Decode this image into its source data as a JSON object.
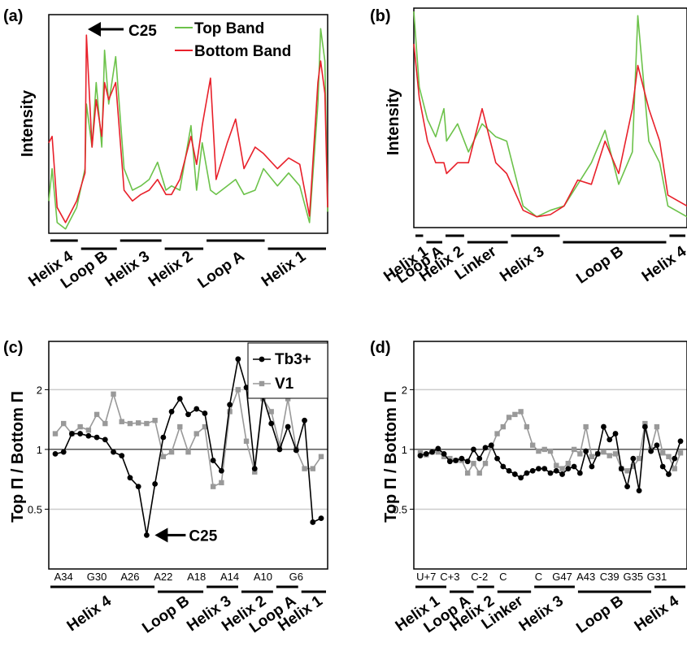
{
  "panels": {
    "a": {
      "tag": "(a)",
      "ylabel": "Intensity",
      "arrow_label": "C25"
    },
    "b": {
      "tag": "(b)",
      "ylabel": "Intensity"
    },
    "c": {
      "tag": "(c)",
      "ylabel": "Top Π / Bottom Π",
      "arrow_label": "C25"
    },
    "d": {
      "tag": "(d)",
      "ylabel": "Top Π / Bottom Π"
    }
  },
  "colors": {
    "top_band": "#6cc24a",
    "bottom_band": "#e8202a",
    "tb3": "#000000",
    "v1": "#999999",
    "gridline": "#cccccc"
  },
  "chart_data": [
    {
      "panel": "a",
      "type": "line",
      "ylabel": "Intensity",
      "y_ticks": "none",
      "legend": {
        "position": "top-right",
        "entries": [
          "Top Band",
          "Bottom Band"
        ]
      },
      "annotations": [
        {
          "text": "C25",
          "points_to": "tallest red peak in Loop B"
        }
      ],
      "regions": [
        {
          "label": "Helix 4",
          "from": 0.0,
          "to": 0.11
        },
        {
          "label": "Loop B",
          "from": 0.11,
          "to": 0.25
        },
        {
          "label": "Helix 3",
          "from": 0.25,
          "to": 0.41
        },
        {
          "label": "Helix 2",
          "from": 0.41,
          "to": 0.56
        },
        {
          "label": "Loop A",
          "from": 0.56,
          "to": 0.78
        },
        {
          "label": "Helix 1",
          "from": 0.78,
          "to": 1.0
        }
      ],
      "series": [
        {
          "name": "Top Band",
          "points": [
            [
              0.0,
              0.15
            ],
            [
              0.012,
              0.3
            ],
            [
              0.03,
              0.05
            ],
            [
              0.06,
              0.02
            ],
            [
              0.1,
              0.12
            ],
            [
              0.13,
              0.3
            ],
            [
              0.135,
              0.6
            ],
            [
              0.155,
              0.4
            ],
            [
              0.17,
              0.7
            ],
            [
              0.19,
              0.4
            ],
            [
              0.2,
              0.85
            ],
            [
              0.215,
              0.6
            ],
            [
              0.24,
              0.82
            ],
            [
              0.27,
              0.3
            ],
            [
              0.3,
              0.2
            ],
            [
              0.33,
              0.22
            ],
            [
              0.36,
              0.25
            ],
            [
              0.39,
              0.33
            ],
            [
              0.42,
              0.2
            ],
            [
              0.44,
              0.22
            ],
            [
              0.47,
              0.2
            ],
            [
              0.51,
              0.5
            ],
            [
              0.53,
              0.2
            ],
            [
              0.55,
              0.42
            ],
            [
              0.58,
              0.2
            ],
            [
              0.6,
              0.18
            ],
            [
              0.64,
              0.22
            ],
            [
              0.67,
              0.25
            ],
            [
              0.7,
              0.18
            ],
            [
              0.74,
              0.2
            ],
            [
              0.77,
              0.3
            ],
            [
              0.82,
              0.22
            ],
            [
              0.86,
              0.28
            ],
            [
              0.9,
              0.22
            ],
            [
              0.935,
              0.05
            ],
            [
              0.965,
              0.6
            ],
            [
              0.975,
              0.95
            ],
            [
              0.99,
              0.8
            ],
            [
              1.0,
              0.1
            ]
          ]
        },
        {
          "name": "Bottom Band",
          "points": [
            [
              0.0,
              0.42
            ],
            [
              0.012,
              0.45
            ],
            [
              0.03,
              0.12
            ],
            [
              0.06,
              0.05
            ],
            [
              0.1,
              0.15
            ],
            [
              0.13,
              0.28
            ],
            [
              0.135,
              0.92
            ],
            [
              0.155,
              0.4
            ],
            [
              0.17,
              0.62
            ],
            [
              0.19,
              0.45
            ],
            [
              0.2,
              0.7
            ],
            [
              0.215,
              0.62
            ],
            [
              0.24,
              0.7
            ],
            [
              0.27,
              0.2
            ],
            [
              0.3,
              0.15
            ],
            [
              0.33,
              0.18
            ],
            [
              0.36,
              0.2
            ],
            [
              0.39,
              0.25
            ],
            [
              0.42,
              0.18
            ],
            [
              0.44,
              0.18
            ],
            [
              0.47,
              0.25
            ],
            [
              0.51,
              0.45
            ],
            [
              0.53,
              0.32
            ],
            [
              0.55,
              0.5
            ],
            [
              0.58,
              0.72
            ],
            [
              0.6,
              0.25
            ],
            [
              0.64,
              0.42
            ],
            [
              0.67,
              0.53
            ],
            [
              0.7,
              0.3
            ],
            [
              0.74,
              0.4
            ],
            [
              0.77,
              0.37
            ],
            [
              0.82,
              0.3
            ],
            [
              0.86,
              0.35
            ],
            [
              0.9,
              0.32
            ],
            [
              0.935,
              0.08
            ],
            [
              0.965,
              0.7
            ],
            [
              0.975,
              0.8
            ],
            [
              0.99,
              0.65
            ],
            [
              1.0,
              0.12
            ]
          ]
        }
      ]
    },
    {
      "panel": "b",
      "type": "line",
      "ylabel": "Intensity",
      "y_ticks": "none",
      "regions": [
        {
          "label": "Helix 1",
          "from": 0.0,
          "to": 0.04
        },
        {
          "label": "Loop A",
          "from": 0.04,
          "to": 0.11
        },
        {
          "label": "Helix 2",
          "from": 0.11,
          "to": 0.19
        },
        {
          "label": "Linker",
          "from": 0.19,
          "to": 0.35
        },
        {
          "label": "Helix 3",
          "from": 0.35,
          "to": 0.54
        },
        {
          "label": "Loop B",
          "from": 0.54,
          "to": 0.93
        },
        {
          "label": "Helix 4",
          "from": 0.93,
          "to": 1.0
        }
      ],
      "series": [
        {
          "name": "Top Band",
          "points": [
            [
              0.0,
              1.0
            ],
            [
              0.02,
              0.65
            ],
            [
              0.05,
              0.5
            ],
            [
              0.08,
              0.42
            ],
            [
              0.11,
              0.55
            ],
            [
              0.12,
              0.4
            ],
            [
              0.16,
              0.48
            ],
            [
              0.2,
              0.35
            ],
            [
              0.25,
              0.48
            ],
            [
              0.3,
              0.42
            ],
            [
              0.34,
              0.4
            ],
            [
              0.4,
              0.1
            ],
            [
              0.45,
              0.05
            ],
            [
              0.5,
              0.08
            ],
            [
              0.55,
              0.1
            ],
            [
              0.6,
              0.2
            ],
            [
              0.65,
              0.3
            ],
            [
              0.7,
              0.45
            ],
            [
              0.75,
              0.2
            ],
            [
              0.8,
              0.35
            ],
            [
              0.82,
              0.98
            ],
            [
              0.86,
              0.4
            ],
            [
              0.9,
              0.3
            ],
            [
              0.93,
              0.1
            ],
            [
              1.0,
              0.05
            ]
          ]
        },
        {
          "name": "Bottom Band",
          "points": [
            [
              0.0,
              0.85
            ],
            [
              0.02,
              0.6
            ],
            [
              0.05,
              0.4
            ],
            [
              0.08,
              0.3
            ],
            [
              0.11,
              0.3
            ],
            [
              0.12,
              0.25
            ],
            [
              0.16,
              0.3
            ],
            [
              0.2,
              0.3
            ],
            [
              0.25,
              0.55
            ],
            [
              0.3,
              0.3
            ],
            [
              0.34,
              0.25
            ],
            [
              0.4,
              0.08
            ],
            [
              0.45,
              0.05
            ],
            [
              0.5,
              0.06
            ],
            [
              0.55,
              0.1
            ],
            [
              0.6,
              0.22
            ],
            [
              0.65,
              0.2
            ],
            [
              0.7,
              0.4
            ],
            [
              0.75,
              0.25
            ],
            [
              0.8,
              0.55
            ],
            [
              0.82,
              0.75
            ],
            [
              0.86,
              0.55
            ],
            [
              0.9,
              0.4
            ],
            [
              0.93,
              0.15
            ],
            [
              1.0,
              0.1
            ]
          ]
        }
      ]
    },
    {
      "panel": "c",
      "type": "line",
      "ylabel": "Top Π / Bottom Π",
      "y_scale": "log",
      "yticks": [
        "0.5",
        "1",
        "2"
      ],
      "ylim": [
        0.25,
        3.5
      ],
      "grid": "horizontal",
      "legend": {
        "position": "top-right",
        "entries": [
          "Tb3+",
          "V1"
        ]
      },
      "annotations": [
        {
          "text": "C25",
          "points_to": "minimum of Tb3+ series"
        }
      ],
      "x_tick_labels": [
        "A34",
        "G30",
        "A26",
        "A22",
        "A18",
        "A14",
        "A10",
        "G6"
      ],
      "x_tick_indices": [
        1,
        5,
        9,
        13,
        17,
        21,
        25,
        29
      ],
      "regions": [
        {
          "label": "Helix 4",
          "from": 0.0,
          "to": 0.385
        },
        {
          "label": "Loop B",
          "from": 0.385,
          "to": 0.56
        },
        {
          "label": "Helix 3",
          "from": 0.56,
          "to": 0.685
        },
        {
          "label": "Helix 2",
          "from": 0.685,
          "to": 0.81
        },
        {
          "label": "Loop A",
          "from": 0.81,
          "to": 0.9
        },
        {
          "label": "Helix 1",
          "from": 0.9,
          "to": 1.0
        }
      ],
      "series": [
        {
          "name": "Tb3+",
          "values": [
            0.95,
            0.97,
            1.2,
            1.2,
            1.17,
            1.15,
            1.12,
            0.97,
            0.93,
            0.72,
            0.65,
            0.37,
            0.67,
            1.15,
            1.55,
            1.8,
            1.5,
            1.6,
            1.52,
            0.88,
            0.78,
            1.68,
            2.85,
            2.05,
            0.8,
            1.85,
            1.35,
            1.0,
            1.3,
            0.99,
            1.4,
            0.43,
            0.45
          ]
        },
        {
          "name": "V1",
          "values": [
            1.2,
            1.35,
            1.2,
            1.3,
            1.25,
            1.5,
            1.35,
            1.9,
            1.38,
            1.35,
            1.36,
            1.35,
            1.4,
            0.92,
            0.97,
            1.3,
            0.97,
            1.2,
            1.3,
            0.65,
            0.68,
            1.55,
            2.0,
            1.1,
            0.77,
            1.8,
            1.55,
            1.05,
            1.8,
            1.0,
            0.8,
            0.8,
            0.92
          ]
        }
      ]
    },
    {
      "panel": "d",
      "type": "line",
      "ylabel": "Top Π / Bottom Π",
      "y_scale": "log",
      "yticks": [
        "0.5",
        "1",
        "2"
      ],
      "ylim": [
        0.25,
        3.5
      ],
      "grid": "horizontal",
      "x_tick_labels": [
        "U+7",
        "C+3",
        "C-2",
        "C",
        "C",
        "G47",
        "A43",
        "C39",
        "G35",
        "G31"
      ],
      "x_tick_indices": [
        1,
        5,
        10,
        14,
        20,
        24,
        28,
        32,
        36,
        40
      ],
      "regions": [
        {
          "label": "Helix 1",
          "from": 0.0,
          "to": 0.125
        },
        {
          "label": "Loop A",
          "from": 0.125,
          "to": 0.225
        },
        {
          "label": "Helix 2",
          "from": 0.225,
          "to": 0.3
        },
        {
          "label": "Linker",
          "from": 0.3,
          "to": 0.435
        },
        {
          "label": "Helix 3",
          "from": 0.435,
          "to": 0.595
        },
        {
          "label": "Loop B",
          "from": 0.595,
          "to": 0.875
        },
        {
          "label": "Helix 4",
          "from": 0.875,
          "to": 1.0
        }
      ],
      "series": [
        {
          "name": "Tb3+",
          "values": [
            0.93,
            0.95,
            0.97,
            1.01,
            0.95,
            0.87,
            0.88,
            0.9,
            0.87,
            1.0,
            0.9,
            1.02,
            1.05,
            0.9,
            0.82,
            0.78,
            0.75,
            0.72,
            0.76,
            0.78,
            0.8,
            0.8,
            0.76,
            0.78,
            0.75,
            0.8,
            0.82,
            0.76,
            0.98,
            0.82,
            0.95,
            1.3,
            1.12,
            1.2,
            0.8,
            0.65,
            0.9,
            0.62,
            1.3,
            0.98,
            1.05,
            0.82,
            0.75,
            0.9,
            1.1
          ]
        },
        {
          "name": "V1",
          "values": [
            0.96,
            0.94,
            0.97,
            0.97,
            0.92,
            0.9,
            0.88,
            0.88,
            0.76,
            0.85,
            0.76,
            0.85,
            1.02,
            1.2,
            1.3,
            1.45,
            1.5,
            1.55,
            1.3,
            1.05,
            0.98,
            1.0,
            0.98,
            0.83,
            0.8,
            0.85,
            1.0,
            0.95,
            1.3,
            0.92,
            0.95,
            0.97,
            0.93,
            0.95,
            0.8,
            0.78,
            0.82,
            0.9,
            1.35,
            1.0,
            1.3,
            0.96,
            0.92,
            0.8,
            0.96
          ]
        }
      ]
    }
  ]
}
